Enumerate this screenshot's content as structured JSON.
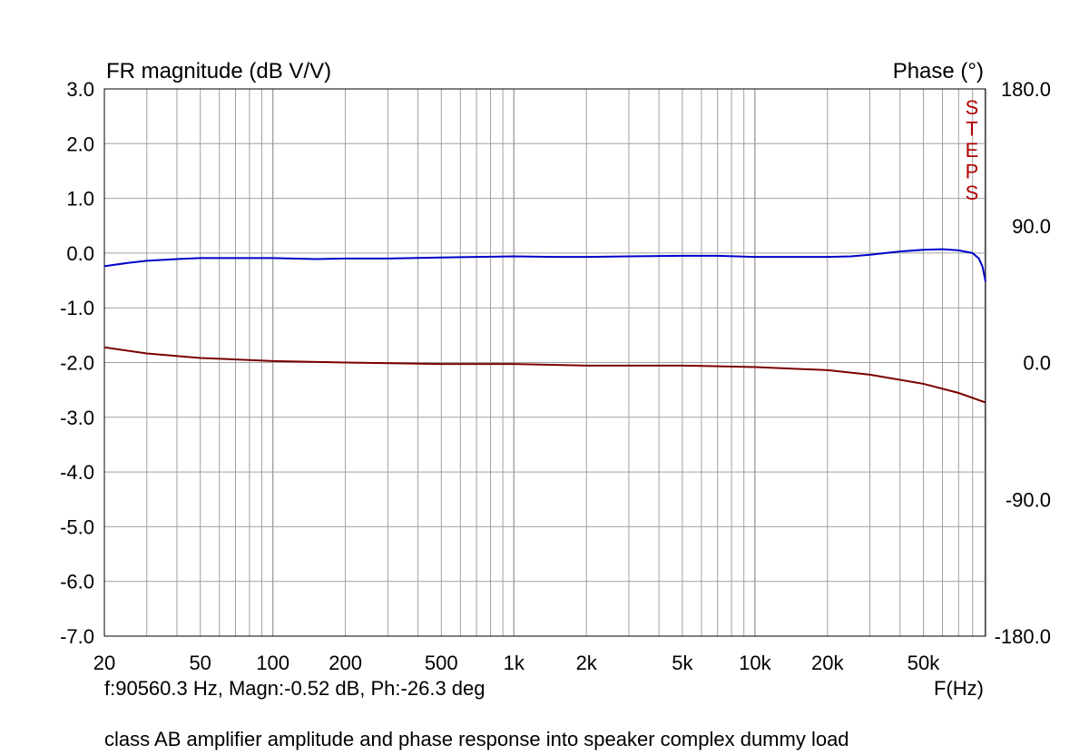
{
  "chart_data": {
    "type": "line",
    "title": "",
    "left_axis_title": "FR magnitude (dB V/V)",
    "right_axis_title": "Phase (°)",
    "x_axis_label": "F(Hz)",
    "x_scale": "log",
    "xlim": [
      20,
      90560.3
    ],
    "ylim_left": [
      -7.0,
      3.0
    ],
    "ylim_right": [
      -180.0,
      180.0
    ],
    "grid": true,
    "x_tick_values": [
      20,
      50,
      100,
      200,
      500,
      1000,
      2000,
      5000,
      10000,
      20000,
      50000
    ],
    "x_tick_labels": [
      "20",
      "50",
      "100",
      "200",
      "500",
      "1k",
      "2k",
      "5k",
      "10k",
      "20k",
      "50k"
    ],
    "y_left_ticks": [
      3.0,
      2.0,
      1.0,
      0.0,
      -1.0,
      -2.0,
      -3.0,
      -4.0,
      -5.0,
      -6.0,
      -7.0
    ],
    "y_left_tick_labels": [
      "3.0",
      "2.0",
      "1.0",
      "0.0",
      "-1.0",
      "-2.0",
      "-3.0",
      "-4.0",
      "-5.0",
      "-6.0",
      "-7.0"
    ],
    "y_right_ticks": [
      180.0,
      90.0,
      0.0,
      -90.0,
      -180.0
    ],
    "y_right_tick_labels": [
      "180.0",
      "90.0",
      "0.0",
      "-90.0",
      "-180.0"
    ],
    "series": [
      {
        "axis": "left",
        "color": "#0000cc",
        "x": [
          20,
          25,
          30,
          40,
          50,
          70,
          100,
          150,
          200,
          300,
          500,
          700,
          1000,
          1500,
          2000,
          3000,
          5000,
          7000,
          10000,
          15000,
          20000,
          25000,
          30000,
          40000,
          50000,
          60000,
          70000,
          80000,
          85000,
          88000,
          90560.3
        ],
        "y": [
          -0.24,
          -0.18,
          -0.14,
          -0.11,
          -0.09,
          -0.09,
          -0.09,
          -0.11,
          -0.1,
          -0.1,
          -0.08,
          -0.07,
          -0.06,
          -0.07,
          -0.07,
          -0.06,
          -0.05,
          -0.05,
          -0.07,
          -0.07,
          -0.07,
          -0.06,
          -0.03,
          0.03,
          0.06,
          0.07,
          0.05,
          0.0,
          -0.1,
          -0.25,
          -0.52
        ]
      },
      {
        "axis": "right",
        "color": "#7a0000",
        "x": [
          20,
          30,
          50,
          100,
          200,
          500,
          1000,
          2000,
          5000,
          10000,
          20000,
          30000,
          50000,
          70000,
          90560.3
        ],
        "y": [
          10.0,
          6.0,
          3.0,
          1.0,
          0.0,
          -1.0,
          -1.0,
          -2.0,
          -2.0,
          -3.0,
          -5.0,
          -8.0,
          -14.0,
          -20.0,
          -26.3
        ]
      }
    ]
  },
  "cursor_readout": "f:90560.3 Hz, Magn:-0.52 dB, Ph:-26.3 deg",
  "steps_label": [
    "S",
    "T",
    "E",
    "P",
    "S"
  ],
  "caption": "class AB amplifier amplitude and phase response into speaker complex dummy load",
  "colors": {
    "grid": "#a0a0a0",
    "frame": "#000000",
    "magnitude": "#0000cc",
    "phase": "#7a0000",
    "steps": "#b00000"
  }
}
